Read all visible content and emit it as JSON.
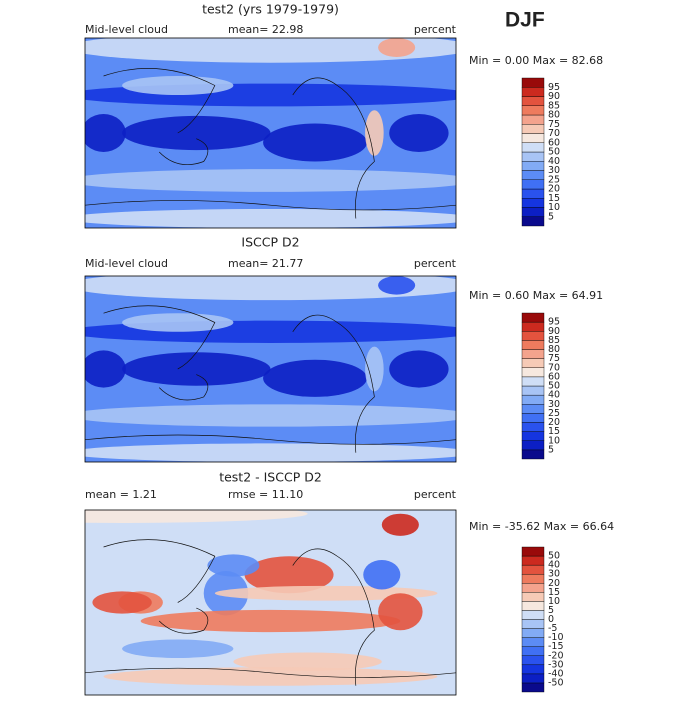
{
  "title": "DJF",
  "panels": [
    {
      "title": "test2 (yrs 1979-1979)",
      "left_label": "Mid-level cloud",
      "center_label": "mean=  22.98",
      "right_label": "percent",
      "min_max": "Min =   0.00 Max =  82.68",
      "colorbar": {
        "levels": [
          5,
          10,
          15,
          20,
          25,
          30,
          40,
          50,
          60,
          70,
          75,
          80,
          85,
          90,
          95
        ],
        "colors": [
          "#0a0a8c",
          "#0c1fc4",
          "#1535e0",
          "#2a52ee",
          "#4070f4",
          "#5c8cf5",
          "#82abf5",
          "#a8c4f5",
          "#cfdef6",
          "#f6e8df",
          "#f6cab6",
          "#f4a38d",
          "#ee7b5e",
          "#e3533e",
          "#cc2a1f",
          "#990a0a"
        ]
      }
    },
    {
      "title": "ISCCP D2",
      "left_label": "Mid-level cloud",
      "center_label": "mean=  21.77",
      "right_label": "percent",
      "min_max": "Min =   0.60 Max =  64.91",
      "colorbar": {
        "levels": [
          5,
          10,
          15,
          20,
          25,
          30,
          40,
          50,
          60,
          70,
          75,
          80,
          85,
          90,
          95
        ],
        "colors": [
          "#0a0a8c",
          "#0c1fc4",
          "#1535e0",
          "#2a52ee",
          "#4070f4",
          "#5c8cf5",
          "#82abf5",
          "#a8c4f5",
          "#cfdef6",
          "#f6e8df",
          "#f6cab6",
          "#f4a38d",
          "#ee7b5e",
          "#e3533e",
          "#cc2a1f",
          "#990a0a"
        ]
      }
    },
    {
      "title": "test2 - ISCCP D2",
      "left_label": "mean =    1.21",
      "center_label": "rmse =   11.10",
      "right_label": "percent",
      "min_max": "Min = -35.62 Max =  66.64",
      "colorbar": {
        "levels": [
          -50,
          -40,
          -30,
          -20,
          -15,
          -10,
          -5,
          0,
          5,
          10,
          15,
          20,
          30,
          40,
          50
        ],
        "colors": [
          "#0a0a8c",
          "#0c1fc4",
          "#1535e0",
          "#2a52ee",
          "#4070f4",
          "#5c8cf5",
          "#82abf5",
          "#a8c4f5",
          "#cfdef6",
          "#f6e8df",
          "#f6cab6",
          "#f4a38d",
          "#ee7b5e",
          "#e3533e",
          "#cc2a1f",
          "#990a0a"
        ]
      }
    }
  ]
}
